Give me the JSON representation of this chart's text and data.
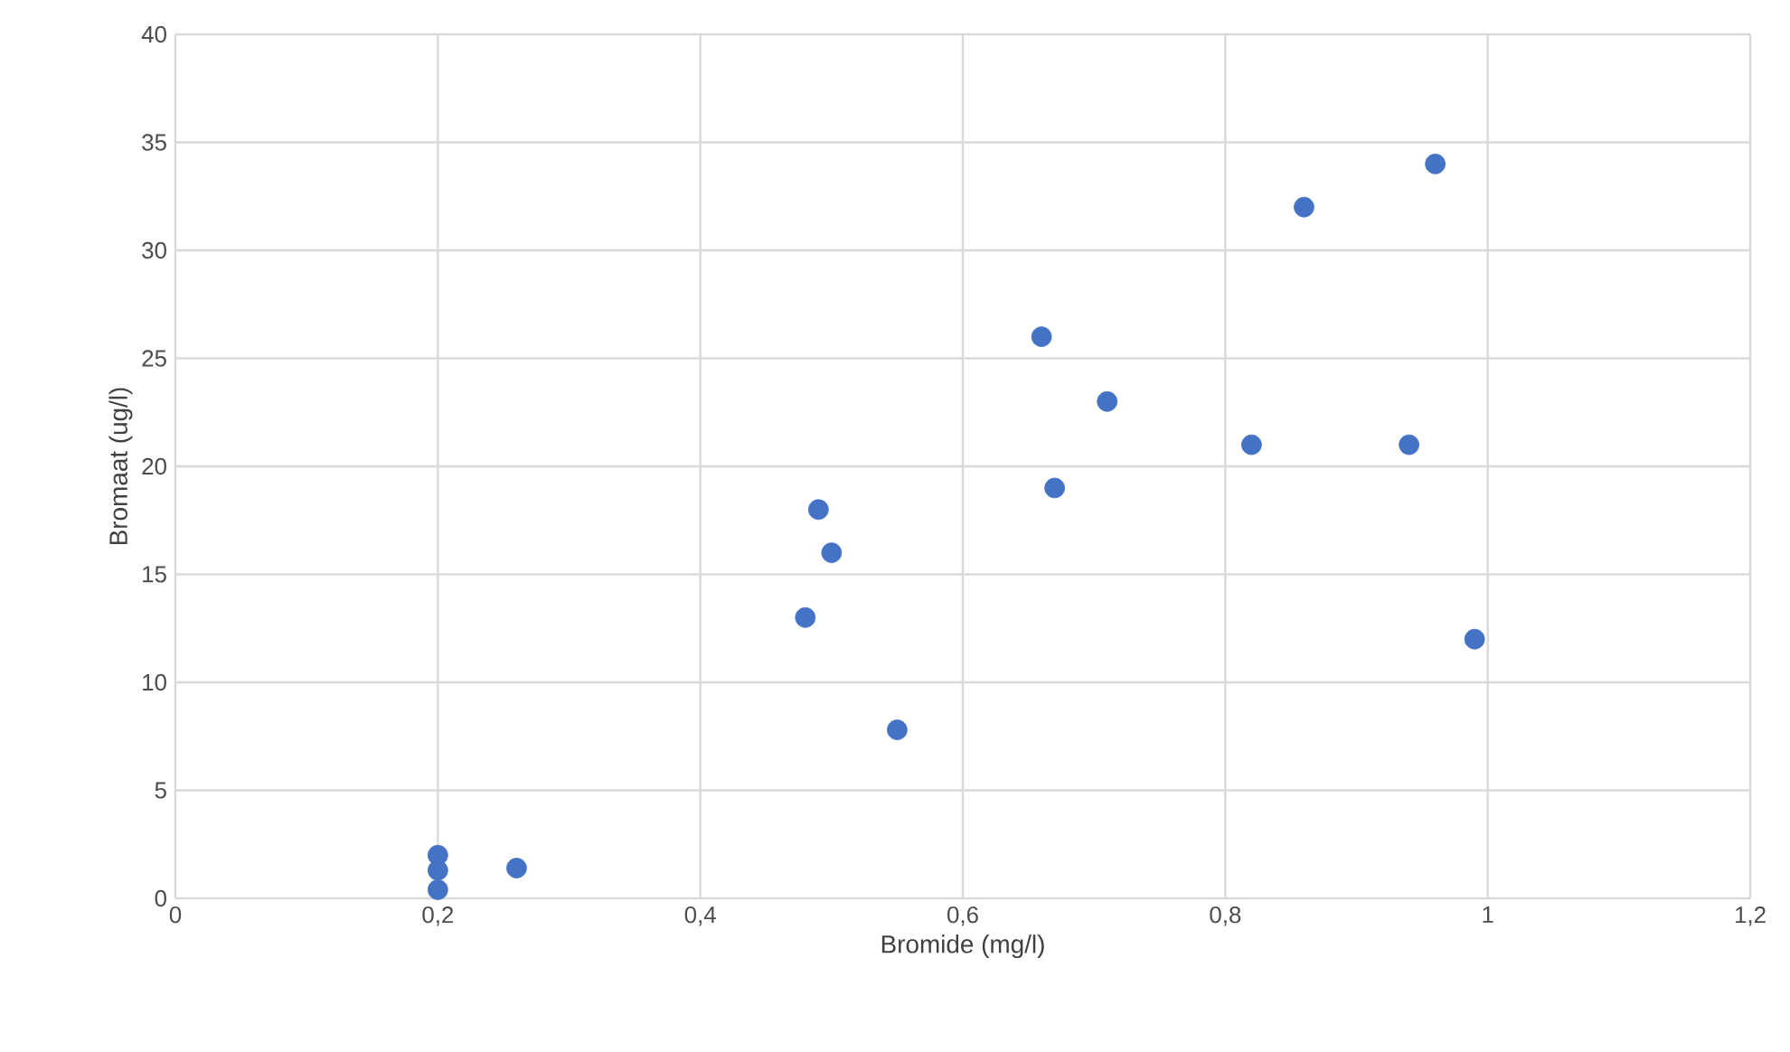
{
  "chart_data": {
    "type": "scatter",
    "xlabel": "Bromide (mg/l)",
    "ylabel": "Bromaat (ug/l)",
    "x": [
      0.2,
      0.2,
      0.2,
      0.26,
      0.48,
      0.49,
      0.5,
      0.55,
      0.66,
      0.67,
      0.71,
      0.82,
      0.86,
      0.94,
      0.96,
      0.99
    ],
    "values": [
      2,
      1.3,
      0.4,
      1.4,
      13,
      18,
      16,
      7.8,
      26,
      19,
      23,
      21,
      32,
      21,
      34,
      12
    ],
    "color": "#4472c4",
    "marker": "circle",
    "grid": true,
    "legend": false,
    "xlim": [
      0,
      1.2
    ],
    "xticks": [
      0,
      {
        "value": 0.2,
        "label": "0,2"
      },
      {
        "value": 0.4,
        "label": "0,4"
      },
      {
        "value": 0.6,
        "label": "0,6"
      },
      {
        "value": 0.8,
        "label": "0,8"
      },
      1,
      {
        "value": 1.2,
        "label": "1,2"
      }
    ],
    "ylim": [
      0,
      40
    ],
    "yticks": [
      0,
      5,
      10,
      15,
      20,
      25,
      30,
      35,
      40
    ]
  }
}
